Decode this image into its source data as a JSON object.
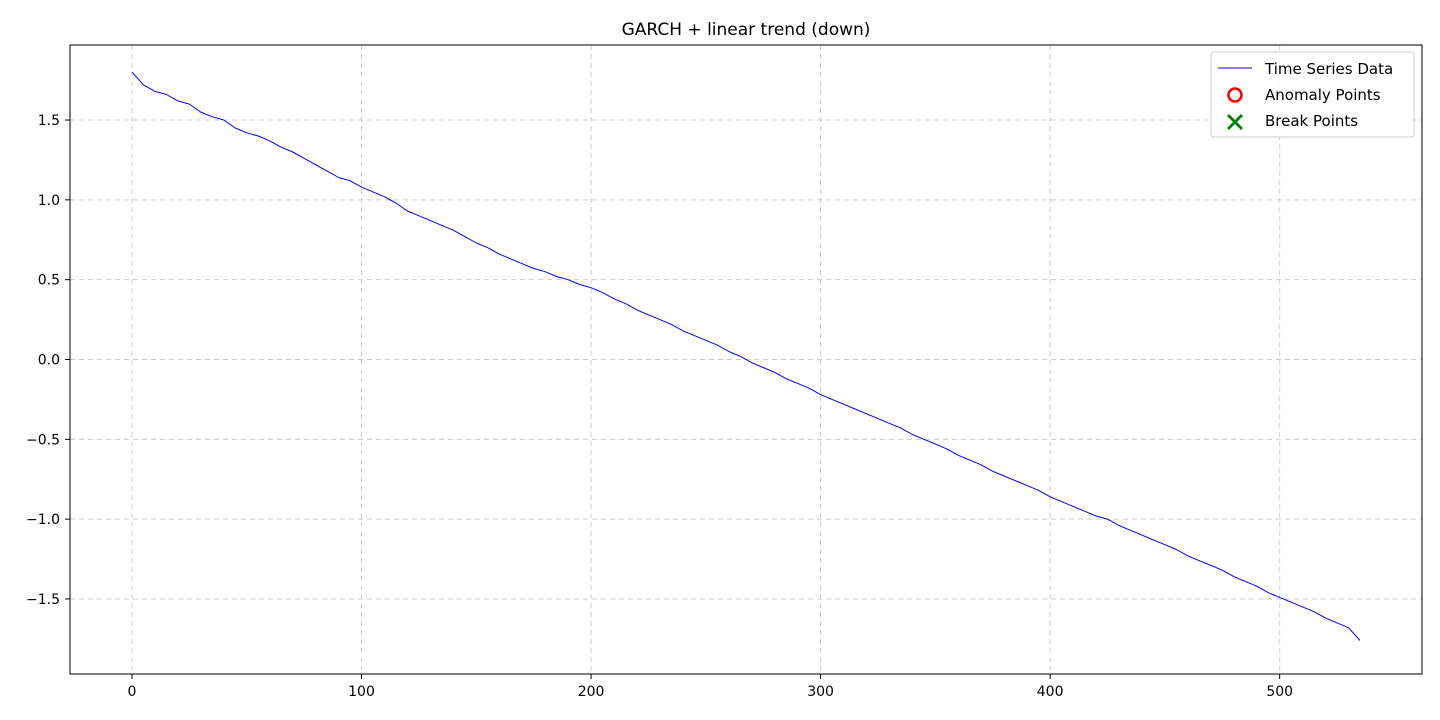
{
  "chart_data": {
    "type": "line",
    "title": "GARCH + linear trend (down)",
    "xlabel": "",
    "ylabel": "",
    "xlim": [
      -27,
      562
    ],
    "ylim": [
      -1.97,
      1.97
    ],
    "x_ticks": [
      0,
      100,
      200,
      300,
      400,
      500
    ],
    "y_ticks": [
      -1.5,
      -1.0,
      -0.5,
      0.0,
      0.5,
      1.0,
      1.5
    ],
    "grid": true,
    "legend_position": "top-right",
    "series": [
      {
        "name": "Time Series Data",
        "color": "#0000ff",
        "points_note_x_step": 5,
        "x": [
          0,
          5,
          10,
          15,
          20,
          25,
          30,
          35,
          40,
          45,
          50,
          55,
          60,
          65,
          70,
          75,
          80,
          85,
          90,
          95,
          100,
          105,
          110,
          115,
          120,
          125,
          130,
          135,
          140,
          145,
          150,
          155,
          160,
          165,
          170,
          175,
          180,
          185,
          190,
          195,
          200,
          205,
          210,
          215,
          220,
          225,
          230,
          235,
          240,
          245,
          250,
          255,
          260,
          265,
          270,
          275,
          280,
          285,
          290,
          295,
          300,
          305,
          310,
          315,
          320,
          325,
          330,
          335,
          340,
          345,
          350,
          355,
          360,
          365,
          370,
          375,
          380,
          385,
          390,
          395,
          400,
          405,
          410,
          415,
          420,
          425,
          430,
          435,
          440,
          445,
          450,
          455,
          460,
          465,
          470,
          475,
          480,
          485,
          490,
          495,
          500,
          505,
          510,
          515,
          520,
          525,
          530,
          535
        ],
        "y": [
          1.8,
          1.72,
          1.68,
          1.66,
          1.62,
          1.6,
          1.55,
          1.52,
          1.5,
          1.45,
          1.42,
          1.4,
          1.37,
          1.33,
          1.3,
          1.26,
          1.22,
          1.18,
          1.14,
          1.12,
          1.08,
          1.05,
          1.02,
          0.98,
          0.93,
          0.9,
          0.87,
          0.84,
          0.81,
          0.77,
          0.73,
          0.7,
          0.66,
          0.63,
          0.6,
          0.57,
          0.55,
          0.52,
          0.5,
          0.47,
          0.45,
          0.42,
          0.38,
          0.35,
          0.31,
          0.28,
          0.25,
          0.22,
          0.18,
          0.15,
          0.12,
          0.09,
          0.05,
          0.02,
          -0.02,
          -0.05,
          -0.08,
          -0.12,
          -0.15,
          -0.18,
          -0.22,
          -0.25,
          -0.28,
          -0.31,
          -0.34,
          -0.37,
          -0.4,
          -0.43,
          -0.47,
          -0.5,
          -0.53,
          -0.56,
          -0.6,
          -0.63,
          -0.66,
          -0.7,
          -0.73,
          -0.76,
          -0.79,
          -0.82,
          -0.86,
          -0.89,
          -0.92,
          -0.95,
          -0.98,
          -1.0,
          -1.04,
          -1.07,
          -1.1,
          -1.13,
          -1.16,
          -1.19,
          -1.23,
          -1.26,
          -1.29,
          -1.32,
          -1.36,
          -1.39,
          -1.42,
          -1.46,
          -1.49,
          -1.52,
          -1.55,
          -1.58,
          -1.62,
          -1.65,
          -1.68,
          -1.76
        ]
      }
    ],
    "legend": [
      {
        "label": "Time Series Data",
        "marker": "line",
        "color": "#0000ff"
      },
      {
        "label": "Anomaly Points",
        "marker": "circle-open",
        "color": "#ff0000"
      },
      {
        "label": "Break Points",
        "marker": "x",
        "color": "#008000"
      }
    ]
  }
}
